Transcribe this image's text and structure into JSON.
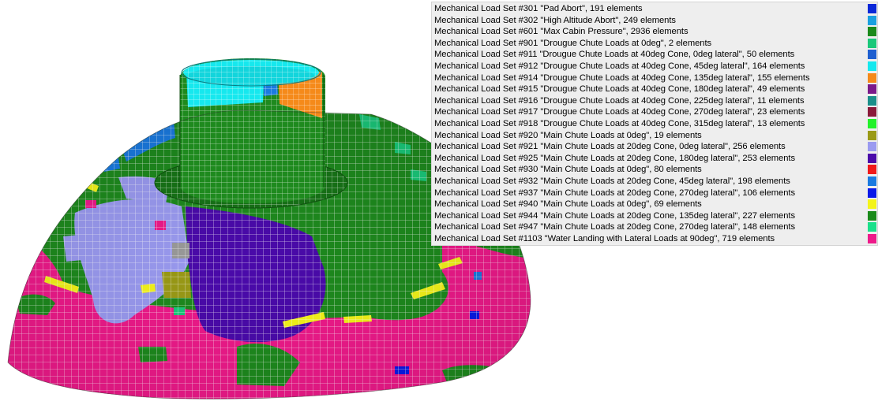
{
  "legend": {
    "entries": [
      {
        "label": "Mechanical Load Set #301 \"Pad Abort\", 191 elements",
        "color": "#0a28d8"
      },
      {
        "label": "Mechanical Load Set #302 \"High Altitude Abort\", 249 elements",
        "color": "#1aa0e0"
      },
      {
        "label": "Mechanical Load Set #601 \"Max Cabin Pressure\", 2936 elements",
        "color": "#1b8a1b"
      },
      {
        "label": "Mechanical Load Set #901 \"Drougue Chute Loads at 0deg\", 2 elements",
        "color": "#1ac87a"
      },
      {
        "label": "Mechanical Load Set #911 \"Drougue Chute Loads at 40deg Cone, 0deg lateral\", 50 elements",
        "color": "#1f5fd0"
      },
      {
        "label": "Mechanical Load Set #912 \"Drougue Chute Loads at 40deg Cone, 45deg lateral\", 164 elements",
        "color": "#16e8ee"
      },
      {
        "label": "Mechanical Load Set #914 \"Drougue Chute Loads at 40deg Cone, 135deg lateral\", 155 elements",
        "color": "#f58a1a"
      },
      {
        "label": "Mechanical Load Set #915 \"Drougue Chute Loads at 40deg Cone, 180deg lateral\", 49 elements",
        "color": "#7b1a8a"
      },
      {
        "label": "Mechanical Load Set #916 \"Drougue Chute Loads at 40deg Cone, 225deg lateral\", 11 elements",
        "color": "#1a8f8a"
      },
      {
        "label": "Mechanical Load Set #917 \"Drougue Chute Loads at 40deg Cone, 270deg lateral\", 23 elements",
        "color": "#8a1a3a"
      },
      {
        "label": "Mechanical Load Set #918 \"Drougue Chute Loads at 40deg Cone, 315deg lateral\", 13 elements",
        "color": "#22f22a"
      },
      {
        "label": "Mechanical Load Set #920 \"Main Chute Loads at 0deg\", 19 elements",
        "color": "#9a9a16"
      },
      {
        "label": "Mechanical Load Set #921 \"Main Chute Loads at 20deg Cone, 0deg lateral\", 256 elements",
        "color": "#9a9af0"
      },
      {
        "label": "Mechanical Load Set #925 \"Main Chute Loads at 20deg Cone, 180deg lateral\", 253 elements",
        "color": "#4a0aaa"
      },
      {
        "label": "Mechanical Load Set #930 \"Main Chute Loads at 0deg\", 80 elements",
        "color": "#f01a1a"
      },
      {
        "label": "Mechanical Load Set #932 \"Main Chute Loads at 20deg Cone, 45deg lateral\", 198 elements",
        "color": "#1a7ae0"
      },
      {
        "label": "Mechanical Load Set #937 \"Main Chute Loads at 20deg Cone, 270deg lateral\", 106 elements",
        "color": "#0a1ae8"
      },
      {
        "label": "Mechanical Load Set #940 \"Main Chute Loads at 0deg\", 69 elements",
        "color": "#f4f41a"
      },
      {
        "label": "Mechanical Load Set #944 \"Main Chute Loads at 20deg Cone, 135deg lateral\", 227 elements",
        "color": "#1a8a1a"
      },
      {
        "label": "Mechanical Load Set #947 \"Main Chute Loads at 20deg Cone, 270deg lateral\", 148 elements",
        "color": "#1ae08a"
      },
      {
        "label": "Mechanical Load Set #1103 \"Water Landing with Lateral Loads at 90deg\", 719 elements",
        "color": "#ee1a8a"
      }
    ]
  }
}
